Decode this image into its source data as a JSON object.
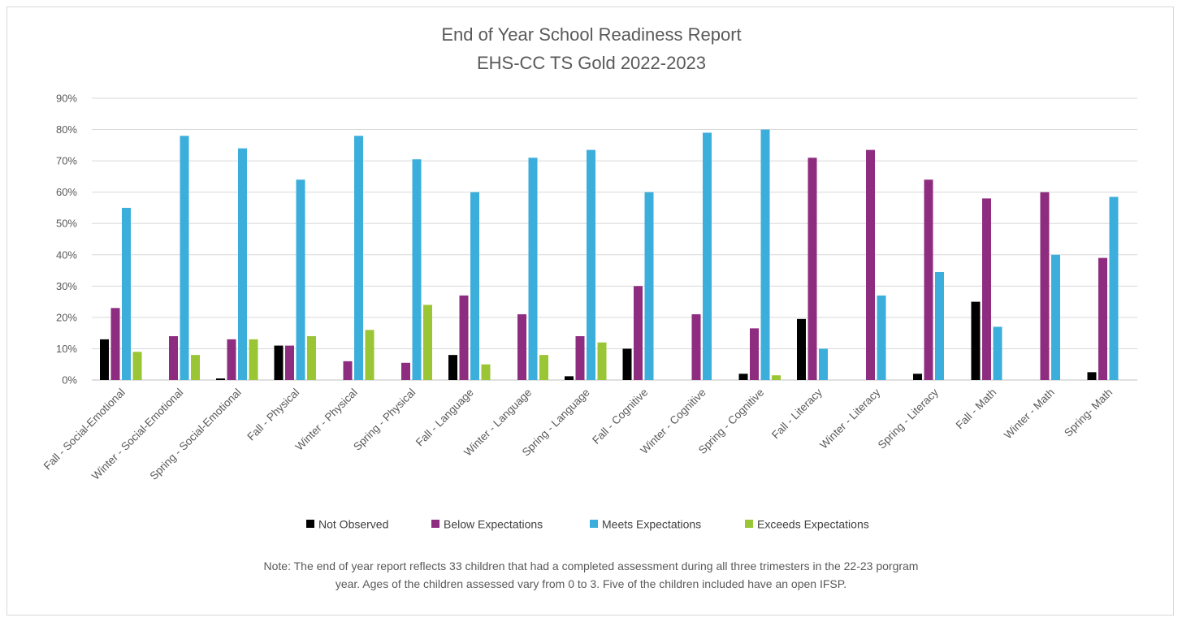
{
  "chart_data": {
    "type": "bar",
    "title": [
      "End of Year School Readiness Report",
      "EHS-CC TS Gold 2022-2023"
    ],
    "xlabel": "",
    "ylabel": "",
    "ylim": [
      0,
      90
    ],
    "y_ticks": [
      "0%",
      "10%",
      "20%",
      "30%",
      "40%",
      "50%",
      "60%",
      "70%",
      "80%",
      "90%"
    ],
    "grid": true,
    "legend_position": "bottom",
    "categories": [
      "Fall - Social-Emotional",
      "Winter - Social-Emotional",
      "Spring - Social-Emotional",
      "Fall - Physical",
      "Winter - Physical",
      "Spring - Physical",
      "Fall - Language",
      "Winter - Language",
      "Spring - Language",
      "Fall - Cognitive",
      "Winter - Cognitive",
      "Spring - Cognitive",
      "Fall - Literacy",
      "Winter - Literacy",
      "Spring - Literacy",
      "Fall - Math",
      "Winter - Math",
      "Spring- Math"
    ],
    "series": [
      {
        "name": "Not Observed",
        "color": "#000000",
        "values": [
          13,
          0,
          0.5,
          11,
          0,
          0,
          8,
          0,
          1.2,
          10,
          0,
          2,
          19.5,
          0,
          2,
          25,
          0,
          2.5
        ]
      },
      {
        "name": "Below Expectations",
        "color": "#8e2c7f",
        "values": [
          23,
          14,
          13,
          11,
          6,
          5.5,
          27,
          21,
          14,
          30,
          21,
          16.5,
          71,
          73.5,
          64,
          58,
          60,
          39
        ]
      },
      {
        "name": "Meets Expectations",
        "color": "#3caedb",
        "values": [
          55,
          78,
          74,
          64,
          78,
          70.5,
          60,
          71,
          73.5,
          60,
          79,
          80,
          10,
          27,
          34.5,
          17,
          40,
          58.5
        ]
      },
      {
        "name": "Exceeds Expectations",
        "color": "#9ac534",
        "values": [
          9,
          8,
          13,
          14,
          16,
          24,
          5,
          8,
          12,
          0,
          0,
          1.5,
          0,
          0,
          0,
          0,
          0,
          0
        ]
      }
    ]
  },
  "note": {
    "line1": "Note: The end of year report reflects 33 children that had a completed assessment during all three trimesters in the 22-23 porgram",
    "line2": "year.  Ages of the children assessed vary from 0 to 3. Five of the children included have an open IFSP."
  }
}
